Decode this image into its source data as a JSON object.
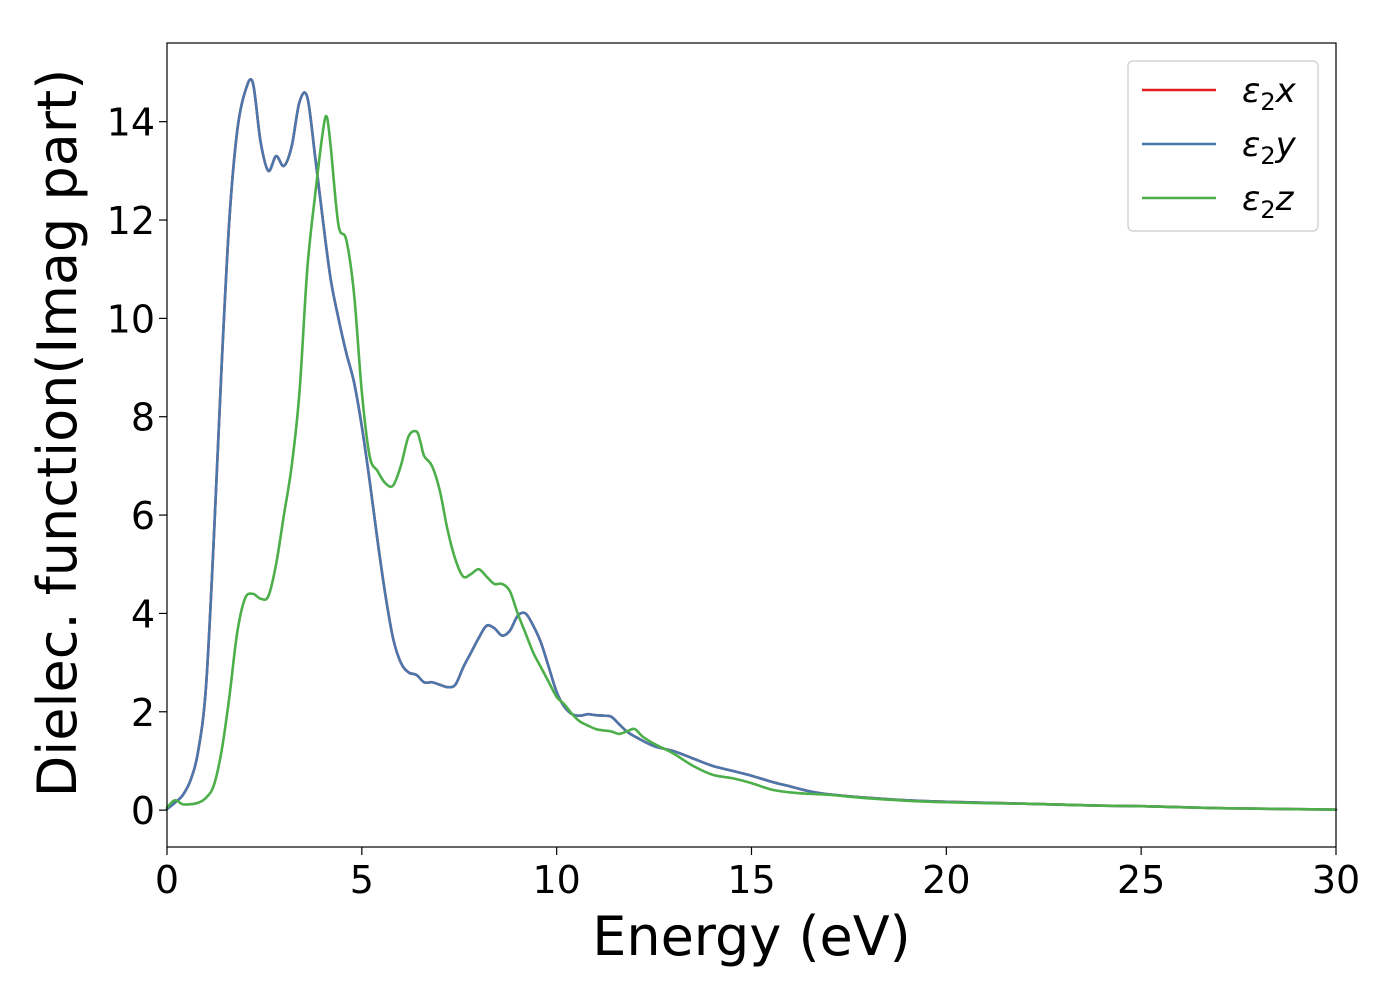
{
  "chart_data": {
    "type": "line",
    "xlabel": "Energy (eV)",
    "ylabel": "Dielec. function(Imag part)",
    "xlim": [
      0,
      30
    ],
    "ylim": [
      -0.75,
      15.6
    ],
    "xticks": [
      0,
      5,
      10,
      15,
      20,
      25,
      30
    ],
    "yticks": [
      0,
      2,
      4,
      6,
      8,
      10,
      12,
      14
    ],
    "grid": false,
    "legend_position": "top-right",
    "series": [
      {
        "name": "ε₂x",
        "legend": {
          "base": "ε",
          "sub": "2",
          "var": "x"
        },
        "color": "#e41a1c",
        "x": [
          0,
          0.2,
          0.4,
          0.6,
          0.8,
          1.0,
          1.2,
          1.4,
          1.6,
          1.8,
          2.0,
          2.2,
          2.4,
          2.6,
          2.8,
          3.0,
          3.2,
          3.4,
          3.6,
          3.8,
          4.0,
          4.2,
          4.4,
          4.6,
          4.8,
          5.0,
          5.2,
          5.4,
          5.6,
          5.8,
          6.0,
          6.2,
          6.4,
          6.6,
          6.8,
          7.0,
          7.2,
          7.4,
          7.6,
          7.8,
          8.0,
          8.2,
          8.4,
          8.6,
          8.8,
          9.0,
          9.2,
          9.4,
          9.6,
          9.8,
          10.0,
          10.2,
          10.4,
          10.6,
          10.8,
          11.0,
          11.2,
          11.4,
          11.6,
          11.8,
          12.0,
          12.5,
          13.0,
          13.5,
          14.0,
          14.5,
          15.0,
          15.5,
          16.0,
          16.5,
          17.0,
          18.0,
          19.0,
          20.0,
          21.0,
          22.0,
          23.0,
          24.0,
          25.0,
          26.0,
          27.0,
          28.0,
          29.0,
          30.0
        ],
        "y": [
          0.02,
          0.15,
          0.3,
          0.6,
          1.2,
          2.5,
          5.5,
          9.0,
          12.0,
          13.8,
          14.6,
          14.8,
          13.6,
          13.0,
          13.3,
          13.1,
          13.5,
          14.4,
          14.5,
          13.3,
          12.0,
          10.8,
          10.0,
          9.3,
          8.7,
          7.8,
          6.7,
          5.5,
          4.4,
          3.5,
          3.0,
          2.8,
          2.75,
          2.6,
          2.6,
          2.55,
          2.5,
          2.55,
          2.9,
          3.2,
          3.5,
          3.75,
          3.7,
          3.55,
          3.65,
          3.95,
          4.0,
          3.75,
          3.4,
          2.9,
          2.4,
          2.1,
          1.95,
          1.92,
          1.95,
          1.93,
          1.92,
          1.9,
          1.75,
          1.6,
          1.5,
          1.3,
          1.2,
          1.05,
          0.9,
          0.8,
          0.7,
          0.58,
          0.48,
          0.38,
          0.32,
          0.25,
          0.2,
          0.17,
          0.15,
          0.13,
          0.11,
          0.09,
          0.08,
          0.06,
          0.04,
          0.03,
          0.02,
          0.01
        ]
      },
      {
        "name": "ε₂y",
        "legend": {
          "base": "ε",
          "sub": "2",
          "var": "y"
        },
        "color": "#4a78ad",
        "x": [
          0,
          0.2,
          0.4,
          0.6,
          0.8,
          1.0,
          1.2,
          1.4,
          1.6,
          1.8,
          2.0,
          2.2,
          2.4,
          2.6,
          2.8,
          3.0,
          3.2,
          3.4,
          3.6,
          3.8,
          4.0,
          4.2,
          4.4,
          4.6,
          4.8,
          5.0,
          5.2,
          5.4,
          5.6,
          5.8,
          6.0,
          6.2,
          6.4,
          6.6,
          6.8,
          7.0,
          7.2,
          7.4,
          7.6,
          7.8,
          8.0,
          8.2,
          8.4,
          8.6,
          8.8,
          9.0,
          9.2,
          9.4,
          9.6,
          9.8,
          10.0,
          10.2,
          10.4,
          10.6,
          10.8,
          11.0,
          11.2,
          11.4,
          11.6,
          11.8,
          12.0,
          12.5,
          13.0,
          13.5,
          14.0,
          14.5,
          15.0,
          15.5,
          16.0,
          16.5,
          17.0,
          18.0,
          19.0,
          20.0,
          21.0,
          22.0,
          23.0,
          24.0,
          25.0,
          26.0,
          27.0,
          28.0,
          29.0,
          30.0
        ],
        "y": [
          0.02,
          0.15,
          0.3,
          0.6,
          1.2,
          2.5,
          5.5,
          9.0,
          12.0,
          13.8,
          14.6,
          14.8,
          13.6,
          13.0,
          13.3,
          13.1,
          13.5,
          14.4,
          14.5,
          13.3,
          12.0,
          10.8,
          10.0,
          9.3,
          8.7,
          7.8,
          6.7,
          5.5,
          4.4,
          3.5,
          3.0,
          2.8,
          2.75,
          2.6,
          2.6,
          2.55,
          2.5,
          2.55,
          2.9,
          3.2,
          3.5,
          3.75,
          3.7,
          3.55,
          3.65,
          3.95,
          4.0,
          3.75,
          3.4,
          2.9,
          2.4,
          2.1,
          1.95,
          1.92,
          1.95,
          1.93,
          1.92,
          1.9,
          1.75,
          1.6,
          1.5,
          1.3,
          1.2,
          1.05,
          0.9,
          0.8,
          0.7,
          0.58,
          0.48,
          0.38,
          0.32,
          0.25,
          0.2,
          0.17,
          0.15,
          0.13,
          0.11,
          0.09,
          0.08,
          0.06,
          0.04,
          0.03,
          0.02,
          0.01
        ]
      },
      {
        "name": "ε₂z",
        "legend": {
          "base": "ε",
          "sub": "2",
          "var": "z"
        },
        "color": "#4daf4a",
        "x": [
          0,
          0.2,
          0.4,
          0.6,
          0.8,
          1.0,
          1.2,
          1.4,
          1.6,
          1.8,
          2.0,
          2.2,
          2.4,
          2.6,
          2.8,
          3.0,
          3.2,
          3.4,
          3.6,
          3.8,
          4.0,
          4.1,
          4.2,
          4.4,
          4.6,
          4.8,
          5.0,
          5.2,
          5.4,
          5.6,
          5.8,
          6.0,
          6.2,
          6.4,
          6.5,
          6.6,
          6.8,
          7.0,
          7.2,
          7.4,
          7.6,
          7.8,
          8.0,
          8.2,
          8.4,
          8.6,
          8.8,
          9.0,
          9.2,
          9.4,
          9.6,
          9.8,
          10.0,
          10.2,
          10.4,
          10.6,
          10.8,
          11.0,
          11.2,
          11.4,
          11.6,
          11.8,
          12.0,
          12.2,
          12.5,
          13.0,
          13.5,
          14.0,
          14.5,
          15.0,
          15.5,
          16.0,
          16.5,
          17.0,
          18.0,
          19.0,
          20.0,
          21.0,
          22.0,
          23.0,
          24.0,
          25.0,
          26.0,
          27.0,
          28.0,
          29.0,
          30.0
        ],
        "y": [
          0.05,
          0.2,
          0.12,
          0.12,
          0.15,
          0.25,
          0.5,
          1.2,
          2.3,
          3.6,
          4.3,
          4.4,
          4.3,
          4.35,
          5.0,
          6.0,
          7.0,
          8.5,
          11.0,
          12.5,
          13.8,
          14.1,
          13.5,
          11.9,
          11.6,
          10.5,
          8.5,
          7.2,
          6.9,
          6.65,
          6.6,
          7.0,
          7.6,
          7.7,
          7.5,
          7.2,
          7.0,
          6.5,
          5.7,
          5.1,
          4.75,
          4.8,
          4.9,
          4.75,
          4.6,
          4.6,
          4.45,
          4.0,
          3.6,
          3.2,
          2.9,
          2.6,
          2.3,
          2.15,
          1.95,
          1.8,
          1.72,
          1.65,
          1.62,
          1.6,
          1.55,
          1.6,
          1.65,
          1.5,
          1.35,
          1.15,
          0.9,
          0.72,
          0.65,
          0.55,
          0.42,
          0.36,
          0.33,
          0.31,
          0.24,
          0.19,
          0.16,
          0.14,
          0.13,
          0.11,
          0.09,
          0.08,
          0.06,
          0.04,
          0.03,
          0.02,
          0.01
        ]
      }
    ]
  }
}
